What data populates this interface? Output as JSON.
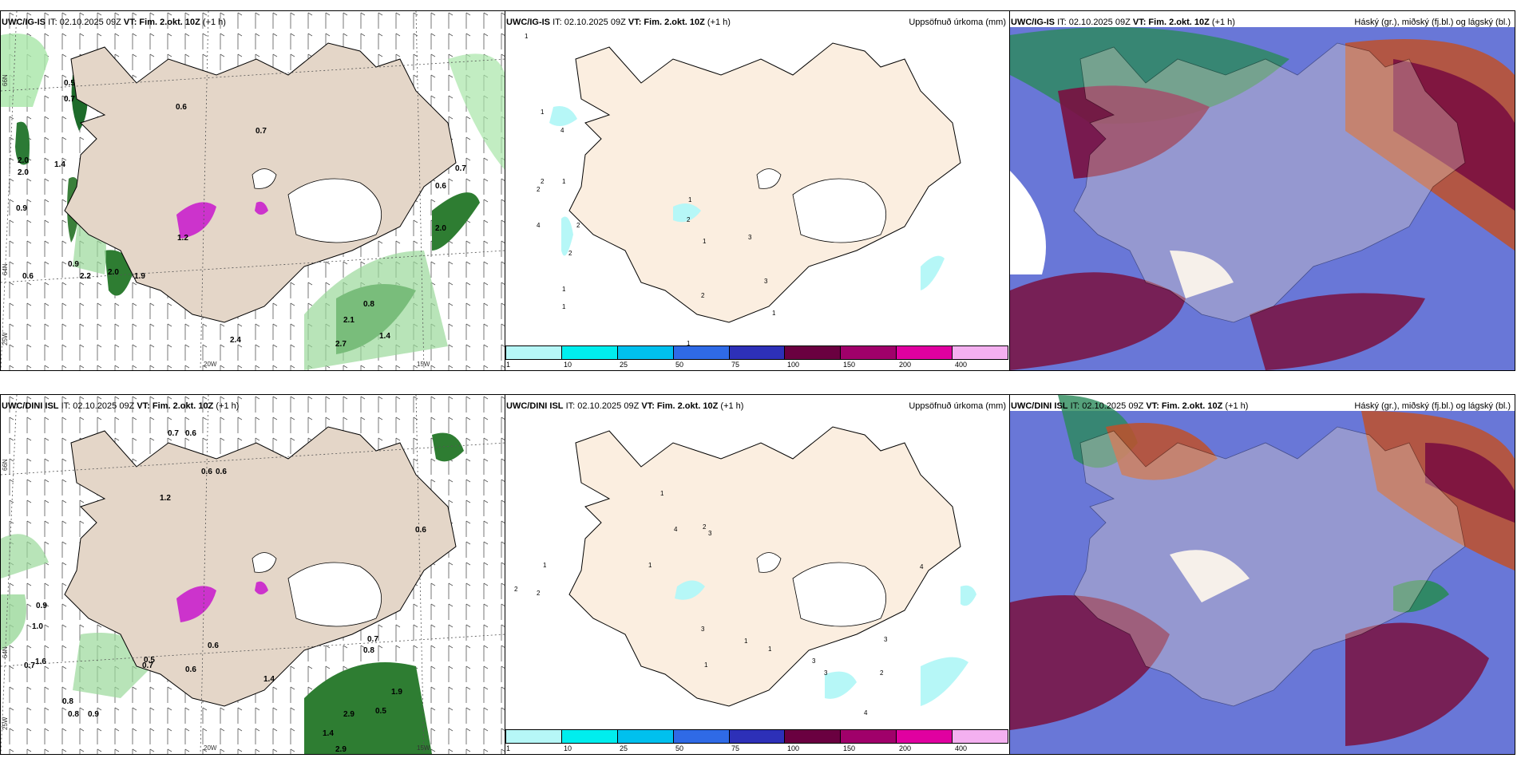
{
  "rows": [
    {
      "model": "UWC/IG-IS",
      "it": "IT: 02.10.2025 09Z",
      "vt_label": "VT:",
      "vt": "Fim. 2.okt. 10Z",
      "lead": "(+1 h)"
    },
    {
      "model": "UWC/DINI ISL",
      "it": "IT: 02.10.2025 09Z",
      "vt_label": "VT:",
      "vt": "Fim. 2.okt. 10Z",
      "lead": "(+1 h)"
    }
  ],
  "precip_title": "Uppsöfnuð úrkoma (mm)",
  "cloud_title": "Háský (gr.), miðský (fj.bl.) og lágský (bl.)",
  "colorbar": {
    "ticks": [
      "1",
      "10",
      "25",
      "50",
      "75",
      "100",
      "150",
      "200",
      "400"
    ],
    "colors": [
      "#b6f7f7",
      "#00eeee",
      "#00c0ee",
      "#2f6ae6",
      "#2d30b8",
      "#6a0040",
      "#a0006a",
      "#e000a0",
      "#f4b0f0"
    ]
  },
  "axis": {
    "lat_66": "66N",
    "lat_64": "64N",
    "lat_25": "25W",
    "lon_20": "20W",
    "lon_15": "15W"
  },
  "panel1_top_values": [
    "0.5",
    "0.7",
    "0.6",
    "0.7",
    "2.0",
    "2.0",
    "1.4",
    "0.9",
    "0.9",
    "0.6",
    "2.2",
    "2.0",
    "1.9",
    "1.2",
    "0.7",
    "0.6",
    "2.0",
    "2.1",
    "0.8",
    "2.4",
    "1.4",
    "2.7"
  ],
  "panel1_bot_values": [
    "0.7",
    "0.6",
    "1.2",
    "0.9",
    "1.0",
    "1.6",
    "0.7",
    "0.8",
    "0.8",
    "0.5",
    "0.6",
    "0.6",
    "0.6",
    "0.7",
    "0.6",
    "0.5",
    "0.7",
    "0.8",
    "0.9",
    "1.4",
    "2.9",
    "1.9",
    "2.9",
    "0.6",
    "1.4"
  ],
  "panel2_top_values": [
    "1",
    "1",
    "4",
    "2",
    "2",
    "1",
    "4",
    "2",
    "2",
    "1",
    "1",
    "1",
    "2",
    "1",
    "3",
    "3",
    "1",
    "2",
    "1"
  ],
  "panel2_bot_values": [
    "1",
    "2",
    "2",
    "1",
    "1",
    "4",
    "2",
    "3",
    "3",
    "3",
    "1",
    "3",
    "2",
    "4",
    "4",
    "1",
    "3",
    "1"
  ]
}
